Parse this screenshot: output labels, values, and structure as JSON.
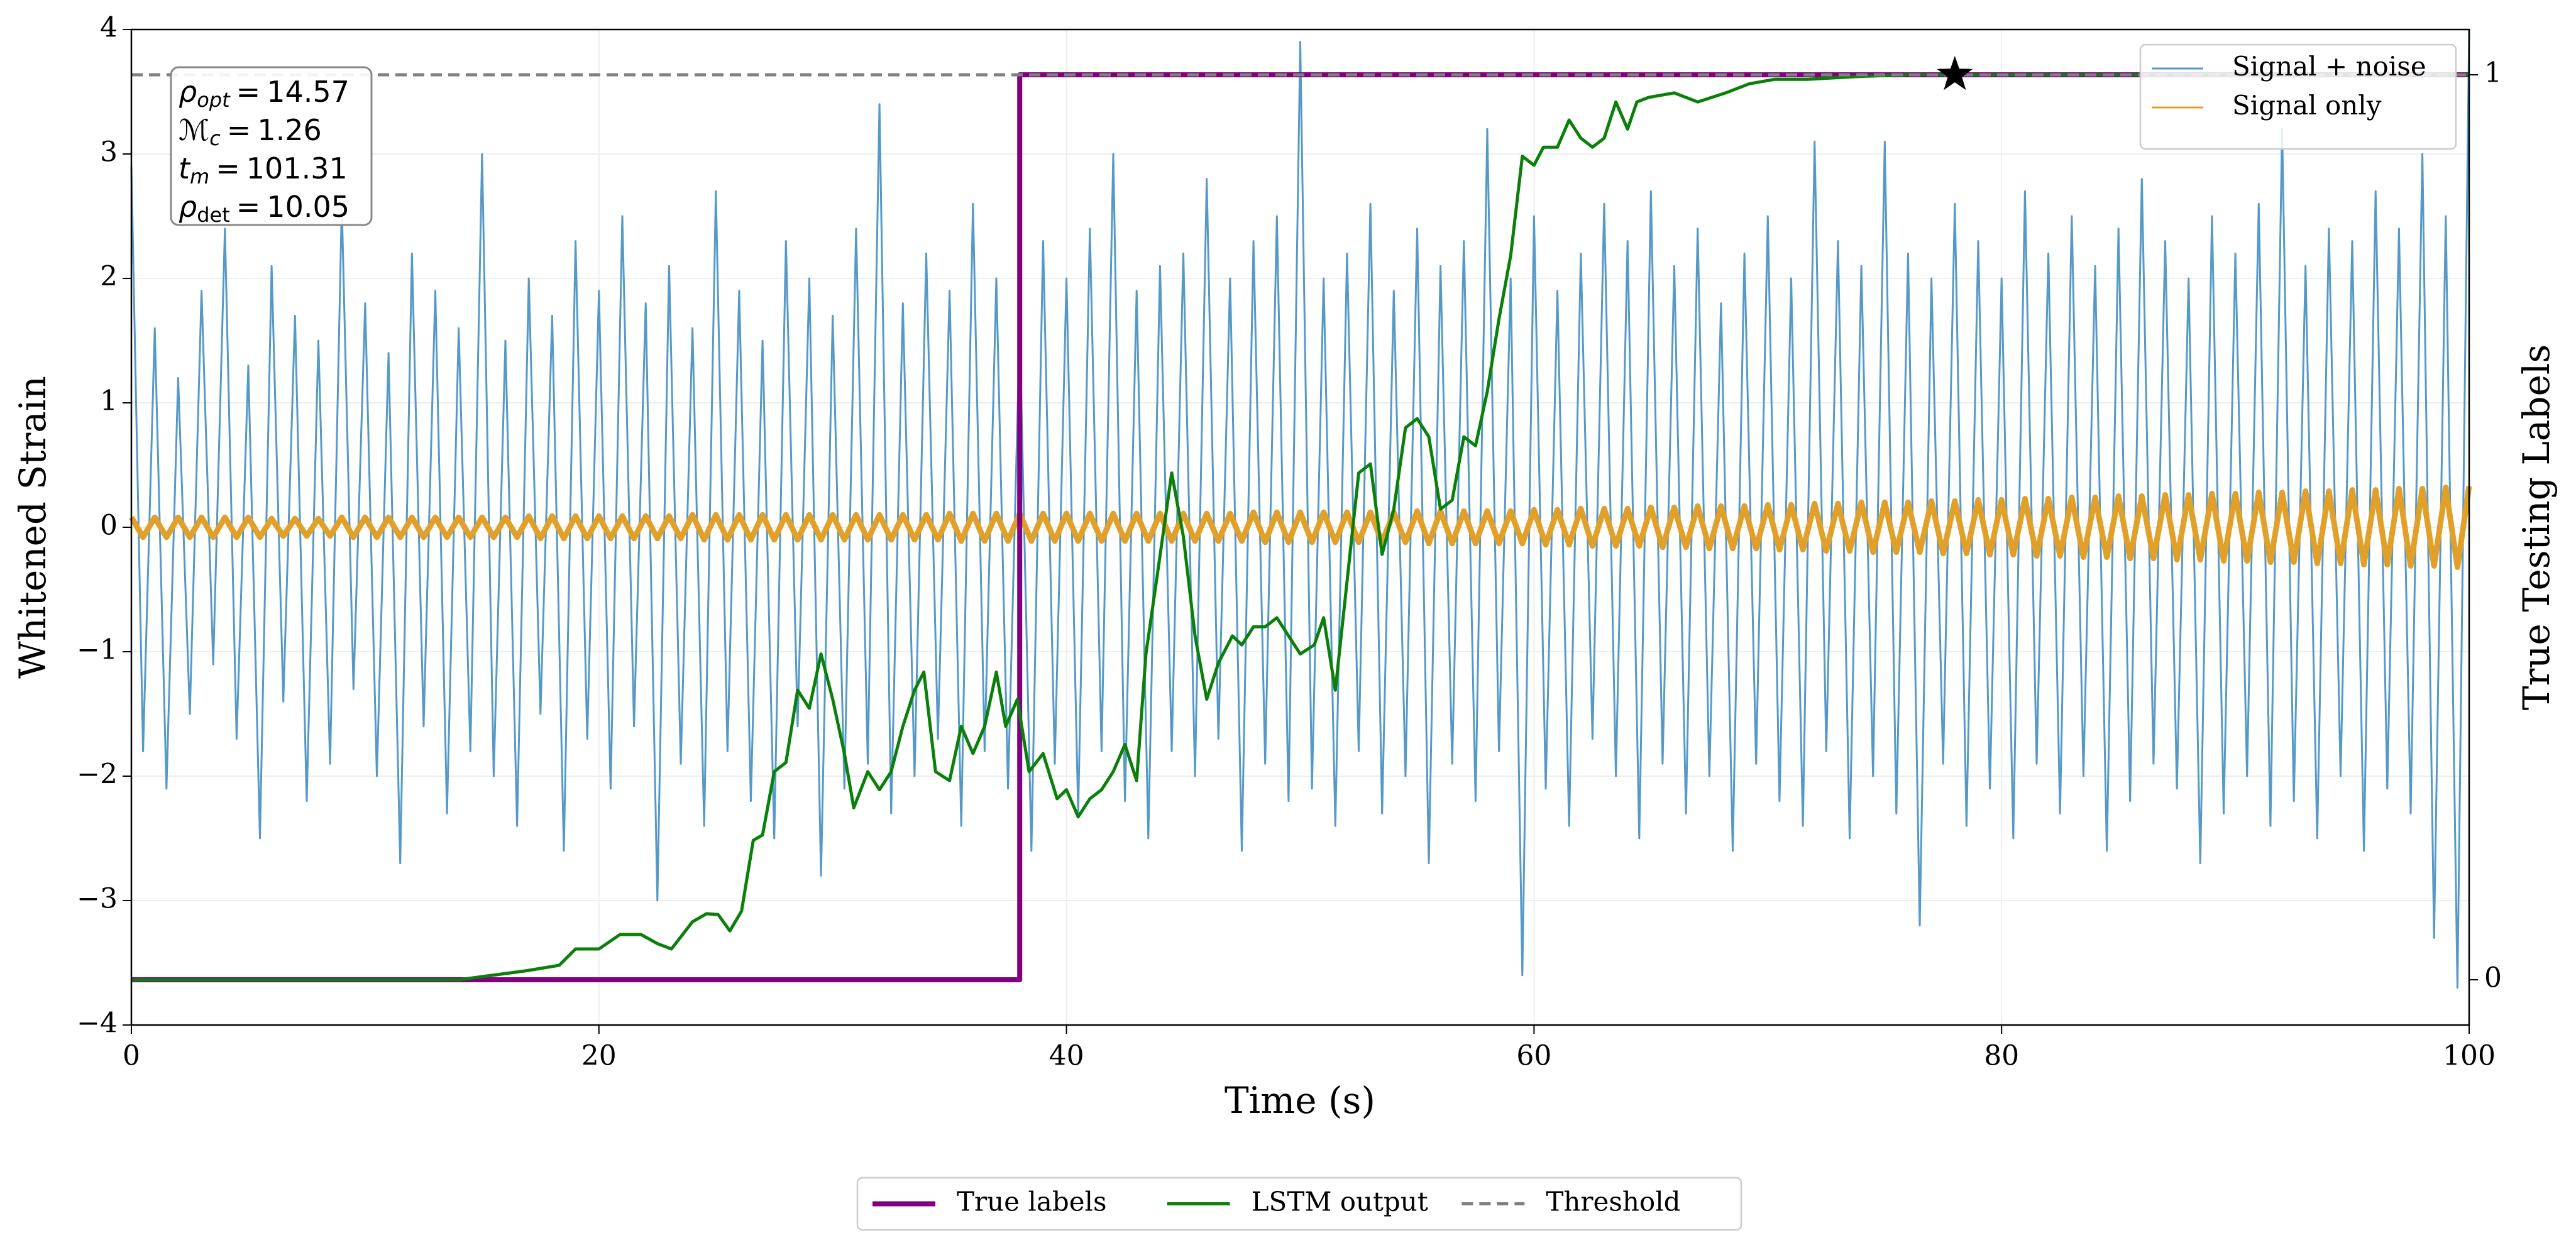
{
  "chart_data": {
    "type": "line",
    "xlabel": "Time (s)",
    "ylabel": "Whitened Strain",
    "y2label": "True Testing Labels",
    "xlim": [
      0,
      100
    ],
    "ylim": [
      -4,
      4
    ],
    "y2lim": [
      -0.05,
      1.05
    ],
    "xticks": [
      0,
      20,
      40,
      60,
      80,
      100
    ],
    "yticks": [
      {
        "value": -4,
        "label": "−4"
      },
      {
        "value": -3,
        "label": "−3"
      },
      {
        "value": -2,
        "label": "−2"
      },
      {
        "value": -1,
        "label": "−1"
      },
      0,
      1,
      2,
      3,
      4
    ],
    "y2ticks": [
      0,
      1
    ],
    "grid": true,
    "x": [
      0,
      0.5,
      1,
      1.5,
      2,
      2.5,
      3,
      3.5,
      4,
      4.5,
      5,
      5.5,
      6,
      6.5,
      7,
      7.5,
      8,
      8.5,
      9,
      9.5,
      10,
      10.5,
      11,
      11.5,
      12,
      12.5,
      13,
      13.5,
      14,
      14.5,
      15,
      15.5,
      16,
      16.5,
      17,
      17.5,
      18,
      18.5,
      19,
      19.5,
      20,
      20.5,
      21,
      21.5,
      22,
      22.5,
      23,
      23.5,
      24,
      24.5,
      25,
      25.5,
      26,
      26.5,
      27,
      27.5,
      28,
      28.5,
      29,
      29.5,
      30,
      30.5,
      31,
      31.5,
      32,
      32.5,
      33,
      33.5,
      34,
      34.5,
      35,
      35.5,
      36,
      36.5,
      37,
      37.5,
      38,
      38.5,
      39,
      39.5,
      40,
      40.5,
      41,
      41.5,
      42,
      42.5,
      43,
      43.5,
      44,
      44.5,
      45,
      45.5,
      46,
      46.5,
      47,
      47.5,
      48,
      48.5,
      49,
      49.5,
      50,
      50.5,
      51,
      51.5,
      52,
      52.5,
      53,
      53.5,
      54,
      54.5,
      55,
      55.5,
      56,
      56.5,
      57,
      57.5,
      58,
      58.5,
      59,
      59.5,
      60,
      60.5,
      61,
      61.5,
      62,
      62.5,
      63,
      63.5,
      64,
      64.5,
      65,
      65.5,
      66,
      66.5,
      67,
      67.5,
      68,
      68.5,
      69,
      69.5,
      70,
      70.5,
      71,
      71.5,
      72,
      72.5,
      73,
      73.5,
      74,
      74.5,
      75,
      75.5,
      76,
      76.5,
      77,
      77.5,
      78,
      78.5,
      79,
      79.5,
      80,
      80.5,
      81,
      81.5,
      82,
      82.5,
      83,
      83.5,
      84,
      84.5,
      85,
      85.5,
      86,
      86.5,
      87,
      87.5,
      88,
      88.5,
      89,
      89.5,
      90,
      90.5,
      91,
      91.5,
      92,
      92.5,
      93,
      93.5,
      94,
      94.5,
      95,
      95.5,
      96,
      96.5,
      97,
      97.5,
      98,
      98.5,
      99,
      99.5,
      100
    ],
    "series": [
      {
        "name": "Signal + noise",
        "color": "#5599c8",
        "axis": "y",
        "width": 3,
        "legend": "upper right",
        "values": [
          2.9,
          -1.8,
          1.6,
          -2.1,
          1.2,
          -1.5,
          1.9,
          -1.1,
          2.4,
          -1.7,
          1.3,
          -2.5,
          2.1,
          -1.4,
          1.7,
          -2.2,
          1.5,
          -1.9,
          2.6,
          -1.3,
          1.8,
          -2.0,
          1.4,
          -2.7,
          2.2,
          -1.6,
          1.9,
          -2.3,
          1.6,
          -1.8,
          3.0,
          -2.0,
          1.5,
          -2.4,
          2.0,
          -1.5,
          1.7,
          -2.6,
          2.3,
          -1.7,
          1.9,
          -2.1,
          2.5,
          -1.6,
          1.8,
          -3.0,
          2.1,
          -1.9,
          1.6,
          -2.4,
          2.7,
          -1.8,
          1.9,
          -2.2,
          1.5,
          -2.5,
          2.3,
          -1.6,
          2.0,
          -2.8,
          1.7,
          -2.1,
          2.4,
          -1.9,
          3.4,
          -2.3,
          1.8,
          -2.0,
          2.2,
          -1.7,
          1.9,
          -2.4,
          2.6,
          -1.8,
          2.0,
          -2.1,
          1.6,
          -2.6,
          2.3,
          -1.9,
          2.0,
          -2.3,
          2.4,
          -1.8,
          3.0,
          -2.2,
          1.9,
          -2.5,
          2.1,
          -1.8,
          2.2,
          -2.0,
          2.8,
          -1.7,
          2.0,
          -2.6,
          2.3,
          -1.9,
          2.5,
          -2.2,
          3.9,
          -2.1,
          2.0,
          -2.4,
          2.2,
          -1.8,
          2.6,
          -2.3,
          1.9,
          -2.0,
          2.4,
          -2.7,
          2.1,
          -1.9,
          2.3,
          -2.2,
          3.2,
          -1.8,
          2.0,
          -3.6,
          2.5,
          -2.1,
          1.9,
          -2.4,
          2.2,
          -1.7,
          2.6,
          -2.0,
          2.3,
          -2.5,
          2.7,
          -1.9,
          2.1,
          -2.3,
          2.4,
          -2.0,
          1.8,
          -2.6,
          2.2,
          -1.9,
          2.5,
          -2.2,
          2.0,
          -2.4,
          3.1,
          -1.8,
          2.3,
          -2.5,
          2.1,
          -2.0,
          3.1,
          -2.3,
          2.2,
          -3.2,
          2.0,
          -1.9,
          2.6,
          -2.4,
          2.3,
          -2.1,
          2.0,
          -2.5,
          2.7,
          -1.9,
          2.2,
          -2.3,
          2.5,
          -2.0,
          2.1,
          -2.6,
          2.4,
          -2.2,
          2.8,
          -1.9,
          2.3,
          -2.1,
          2.0,
          -2.7,
          2.5,
          -2.3,
          2.2,
          -2.0,
          2.6,
          -2.4,
          3.2,
          -2.2,
          2.1,
          -2.5,
          2.4,
          -2.0,
          2.3,
          -2.6,
          2.7,
          -2.1,
          2.4,
          -2.3,
          3.0,
          -3.3,
          2.5,
          -3.7,
          4.0
        ]
      },
      {
        "name": "Signal only",
        "color": "#e0a02a",
        "axis": "y",
        "width": 9,
        "legend": "upper right",
        "values": [
          0.08,
          -0.08,
          0.08,
          -0.08,
          0.08,
          -0.08,
          0.08,
          -0.08,
          0.08,
          -0.08,
          0.08,
          -0.08,
          0.07,
          -0.07,
          0.07,
          -0.07,
          0.07,
          -0.07,
          0.08,
          -0.08,
          0.08,
          -0.08,
          0.08,
          -0.08,
          0.08,
          -0.08,
          0.08,
          -0.08,
          0.08,
          -0.08,
          0.08,
          -0.08,
          0.08,
          -0.08,
          0.09,
          -0.09,
          0.09,
          -0.09,
          0.09,
          -0.09,
          0.09,
          -0.09,
          0.09,
          -0.09,
          0.09,
          -0.09,
          0.09,
          -0.09,
          0.1,
          -0.1,
          0.1,
          -0.1,
          0.1,
          -0.1,
          0.1,
          -0.1,
          0.1,
          -0.1,
          0.1,
          -0.1,
          0.1,
          -0.1,
          0.1,
          -0.1,
          0.1,
          -0.1,
          0.1,
          -0.1,
          0.1,
          -0.1,
          0.11,
          -0.11,
          0.11,
          -0.11,
          0.11,
          -0.11,
          0.11,
          -0.11,
          0.11,
          -0.11,
          0.11,
          -0.11,
          0.11,
          -0.11,
          0.11,
          -0.11,
          0.11,
          -0.11,
          0.11,
          -0.11,
          0.11,
          -0.11,
          0.11,
          -0.11,
          0.11,
          -0.11,
          0.12,
          -0.12,
          0.12,
          -0.12,
          0.12,
          -0.12,
          0.12,
          -0.12,
          0.12,
          -0.12,
          0.12,
          -0.12,
          0.12,
          -0.12,
          0.13,
          -0.13,
          0.13,
          -0.13,
          0.13,
          -0.13,
          0.13,
          -0.13,
          0.13,
          -0.13,
          0.14,
          -0.14,
          0.14,
          -0.14,
          0.15,
          -0.15,
          0.15,
          -0.15,
          0.15,
          -0.15,
          0.16,
          -0.16,
          0.16,
          -0.16,
          0.17,
          -0.17,
          0.17,
          -0.17,
          0.17,
          -0.17,
          0.18,
          -0.18,
          0.18,
          -0.18,
          0.19,
          -0.19,
          0.19,
          -0.19,
          0.2,
          -0.2,
          0.2,
          -0.2,
          0.2,
          -0.2,
          0.21,
          -0.21,
          0.21,
          -0.21,
          0.22,
          -0.22,
          0.22,
          -0.22,
          0.23,
          -0.23,
          0.23,
          -0.23,
          0.24,
          -0.24,
          0.24,
          -0.24,
          0.25,
          -0.25,
          0.25,
          -0.25,
          0.26,
          -0.26,
          0.26,
          -0.26,
          0.27,
          -0.27,
          0.27,
          -0.27,
          0.28,
          -0.28,
          0.28,
          -0.28,
          0.29,
          -0.29,
          0.29,
          -0.29,
          0.3,
          -0.3,
          0.3,
          -0.3,
          0.31,
          -0.31,
          0.31,
          -0.31,
          0.32,
          -0.32,
          0.33
        ]
      },
      {
        "name": "True labels",
        "color": "#800080",
        "axis": "y2",
        "width": 8,
        "legend": "lower center",
        "x": [
          0,
          38,
          38,
          100
        ],
        "values": [
          0,
          0,
          1,
          1
        ]
      },
      {
        "name": "LSTM output",
        "color": "#0a800a",
        "axis": "y2",
        "width": 5,
        "legend": "lower center",
        "x": [
          0,
          14,
          16.9,
          18.3,
          19,
          20,
          20.9,
          21.8,
          22.5,
          23.1,
          24,
          24.6,
          25.1,
          25.6,
          26.1,
          26.6,
          27,
          27.5,
          28,
          28.5,
          29,
          29.5,
          30,
          30.5,
          30.9,
          31.5,
          32,
          32.5,
          33,
          33.5,
          33.9,
          34.4,
          35,
          35.5,
          36,
          36.5,
          37,
          37.4,
          37.9,
          38.4,
          39,
          39.6,
          40,
          40.5,
          41,
          41.5,
          42,
          42.5,
          43,
          43.4,
          43.9,
          44.5,
          45,
          45.5,
          46,
          46.5,
          47.1,
          47.5,
          48,
          48.5,
          49,
          49.5,
          50,
          50.6,
          51,
          51.5,
          52,
          52.5,
          53,
          53.5,
          54,
          54.5,
          55,
          55.5,
          56,
          56.5,
          57,
          57.5,
          58,
          58.5,
          59,
          59.5,
          60,
          60.4,
          61,
          61.5,
          62,
          62.5,
          63,
          63.5,
          64,
          64.4,
          64.9,
          66,
          67,
          68.2,
          69.2,
          70.3,
          71.7,
          73.8,
          75.9,
          100
        ],
        "values": [
          0,
          0,
          0.01,
          0.016,
          0.034,
          0.034,
          0.05,
          0.05,
          0.04,
          0.034,
          0.064,
          0.073,
          0.072,
          0.054,
          0.076,
          0.154,
          0.16,
          0.23,
          0.24,
          0.32,
          0.3,
          0.36,
          0.31,
          0.25,
          0.19,
          0.23,
          0.21,
          0.23,
          0.28,
          0.32,
          0.34,
          0.23,
          0.22,
          0.28,
          0.25,
          0.28,
          0.34,
          0.28,
          0.31,
          0.23,
          0.25,
          0.2,
          0.21,
          0.18,
          0.2,
          0.21,
          0.23,
          0.26,
          0.22,
          0.36,
          0.45,
          0.56,
          0.49,
          0.38,
          0.31,
          0.35,
          0.38,
          0.37,
          0.39,
          0.39,
          0.4,
          0.38,
          0.36,
          0.37,
          0.4,
          0.32,
          0.44,
          0.56,
          0.57,
          0.47,
          0.52,
          0.61,
          0.62,
          0.6,
          0.52,
          0.53,
          0.6,
          0.59,
          0.65,
          0.73,
          0.8,
          0.91,
          0.9,
          0.92,
          0.92,
          0.95,
          0.93,
          0.92,
          0.93,
          0.97,
          0.94,
          0.97,
          0.975,
          0.98,
          0.97,
          0.98,
          0.99,
          0.995,
          0.995,
          0.998,
          1,
          1
        ]
      },
      {
        "name": "Threshold",
        "color": "#808080",
        "axis": "y2",
        "width": 5,
        "dash": true,
        "legend": "lower center",
        "x": [
          0,
          100
        ],
        "values": [
          1,
          1
        ]
      }
    ],
    "marker": {
      "x": 78,
      "y": 1,
      "axis": "y2",
      "color": "#000000"
    },
    "annotations": [
      {
        "symbol": "ρ",
        "subscript": "opt",
        "operator": "=",
        "value": 14.57
      },
      {
        "symbol": "ℳ",
        "subscript": "c",
        "operator": "=",
        "value": 1.26
      },
      {
        "symbol": "t",
        "subscript": "m",
        "operator": "=",
        "value": 101.31
      },
      {
        "symbol": "ρ",
        "subscript": "det",
        "operator": "=",
        "value": 10.05
      }
    ]
  }
}
